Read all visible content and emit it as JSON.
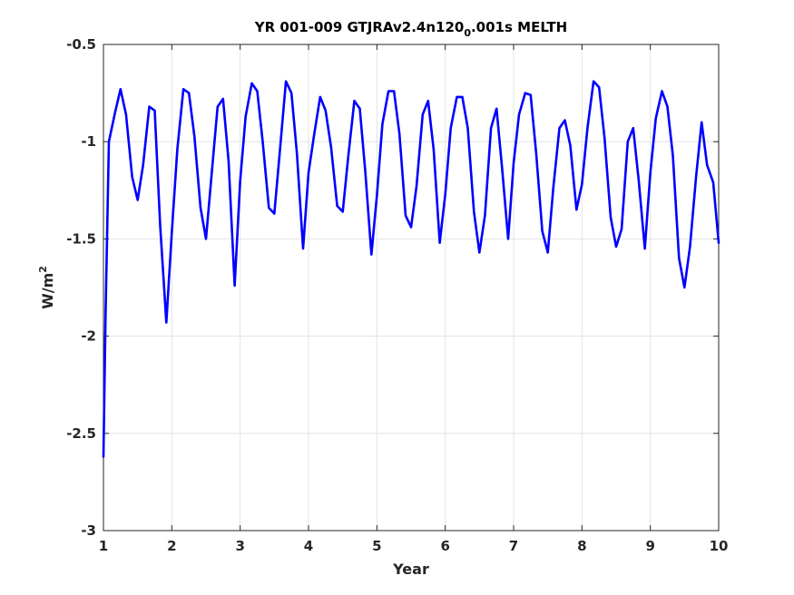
{
  "chart_data": {
    "type": "line",
    "title_main": "YR 001-009 GTJRAv2.4n120",
    "title_sub": "0",
    "title_tail": ".001s MELTH",
    "xlabel": "Year",
    "ylabel_base": "W/m",
    "ylabel_sup": "2",
    "xlim": [
      1,
      10
    ],
    "ylim": [
      -3,
      -0.5
    ],
    "xticks": [
      1,
      2,
      3,
      4,
      5,
      6,
      7,
      8,
      9,
      10
    ],
    "xtick_labels": [
      "1",
      "2",
      "3",
      "4",
      "5",
      "6",
      "7",
      "8",
      "9",
      "10"
    ],
    "yticks": [
      -3,
      -2.5,
      -2,
      -1.5,
      -1,
      -0.5
    ],
    "ytick_labels": [
      "-3",
      "-2.5",
      "-2",
      "-1.5",
      "-1",
      "-0.5"
    ],
    "grid": true,
    "series": [
      {
        "color": "#0000ff",
        "x": [
          1.0,
          1.03,
          1.08,
          1.17,
          1.25,
          1.33,
          1.42,
          1.5,
          1.58,
          1.67,
          1.75,
          1.83,
          1.92,
          2.0,
          2.08,
          2.17,
          2.25,
          2.33,
          2.42,
          2.5,
          2.58,
          2.67,
          2.75,
          2.83,
          2.92,
          3.0,
          3.08,
          3.17,
          3.25,
          3.33,
          3.42,
          3.5,
          3.58,
          3.67,
          3.75,
          3.83,
          3.92,
          4.0,
          4.08,
          4.17,
          4.25,
          4.33,
          4.42,
          4.5,
          4.58,
          4.67,
          4.75,
          4.83,
          4.92,
          5.0,
          5.08,
          5.17,
          5.25,
          5.33,
          5.42,
          5.5,
          5.58,
          5.67,
          5.75,
          5.83,
          5.92,
          6.0,
          6.08,
          6.17,
          6.25,
          6.33,
          6.42,
          6.5,
          6.58,
          6.67,
          6.75,
          6.83,
          6.92,
          7.0,
          7.08,
          7.17,
          7.25,
          7.33,
          7.42,
          7.5,
          7.58,
          7.67,
          7.75,
          7.83,
          7.92,
          8.0,
          8.08,
          8.17,
          8.25,
          8.33,
          8.42,
          8.5,
          8.58,
          8.67,
          8.75,
          8.83,
          8.92,
          9.0,
          9.08,
          9.17,
          9.25,
          9.33,
          9.42,
          9.5,
          9.58,
          9.67,
          9.75,
          9.83,
          9.92,
          10.0
        ],
        "y": [
          -2.62,
          -1.9,
          -1.0,
          -0.85,
          -0.73,
          -0.86,
          -1.18,
          -1.3,
          -1.12,
          -0.82,
          -0.84,
          -1.43,
          -1.93,
          -1.47,
          -1.04,
          -0.73,
          -0.75,
          -0.97,
          -1.34,
          -1.5,
          -1.18,
          -0.82,
          -0.78,
          -1.1,
          -1.74,
          -1.2,
          -0.87,
          -0.7,
          -0.74,
          -1.0,
          -1.34,
          -1.37,
          -1.05,
          -0.69,
          -0.75,
          -1.06,
          -1.55,
          -1.16,
          -0.97,
          -0.77,
          -0.84,
          -1.03,
          -1.33,
          -1.36,
          -1.08,
          -0.79,
          -0.83,
          -1.15,
          -1.58,
          -1.28,
          -0.91,
          -0.74,
          -0.74,
          -0.96,
          -1.38,
          -1.44,
          -1.23,
          -0.86,
          -0.79,
          -1.04,
          -1.52,
          -1.27,
          -0.93,
          -0.77,
          -0.77,
          -0.93,
          -1.36,
          -1.57,
          -1.38,
          -0.93,
          -0.83,
          -1.13,
          -1.5,
          -1.11,
          -0.86,
          -0.75,
          -0.76,
          -1.06,
          -1.46,
          -1.57,
          -1.24,
          -0.93,
          -0.89,
          -1.02,
          -1.35,
          -1.22,
          -0.93,
          -0.69,
          -0.72,
          -0.98,
          -1.39,
          -1.54,
          -1.45,
          -1.0,
          -0.93,
          -1.2,
          -1.55,
          -1.16,
          -0.88,
          -0.74,
          -0.82,
          -1.07,
          -1.6,
          -1.75,
          -1.54,
          -1.18,
          -0.9,
          -1.12,
          -1.21,
          -1.52
        ]
      }
    ]
  }
}
